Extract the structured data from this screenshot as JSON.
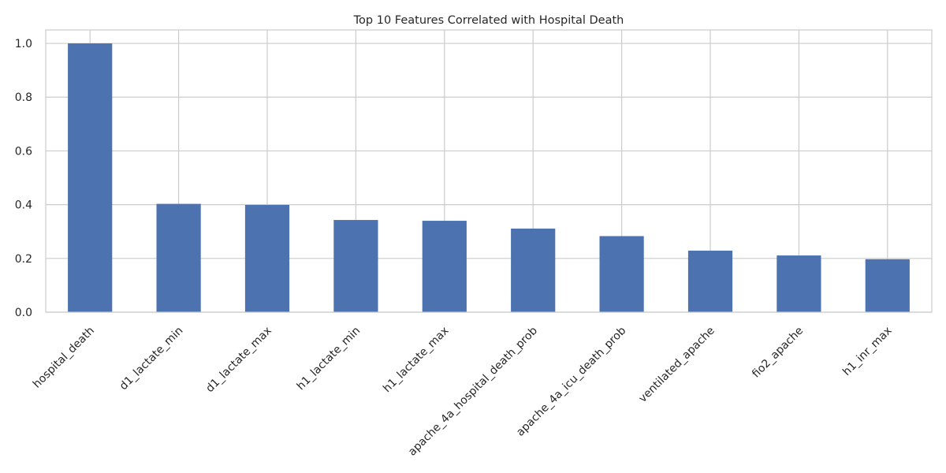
{
  "chart_data": {
    "type": "bar",
    "title": "Top 10 Features Correlated with Hospital Death",
    "xlabel": "",
    "ylabel": "",
    "categories": [
      "hospital_death",
      "d1_lactate_min",
      "d1_lactate_max",
      "h1_lactate_min",
      "h1_lactate_max",
      "apache_4a_hospital_death_prob",
      "apache_4a_icu_death_prob",
      "ventilated_apache",
      "fio2_apache",
      "h1_inr_max"
    ],
    "values": [
      1.0,
      0.403,
      0.399,
      0.343,
      0.34,
      0.311,
      0.283,
      0.229,
      0.211,
      0.197
    ],
    "ylim": [
      0,
      1.05
    ],
    "yticks": [
      0.0,
      0.2,
      0.4,
      0.6,
      0.8,
      1.0
    ],
    "ytick_labels": [
      "0.0",
      "0.2",
      "0.4",
      "0.6",
      "0.8",
      "1.0"
    ],
    "grid": true,
    "legend": "none",
    "bar_color": "#4c72b0",
    "grid_color": "#cccccc",
    "text_color": "#262626"
  }
}
